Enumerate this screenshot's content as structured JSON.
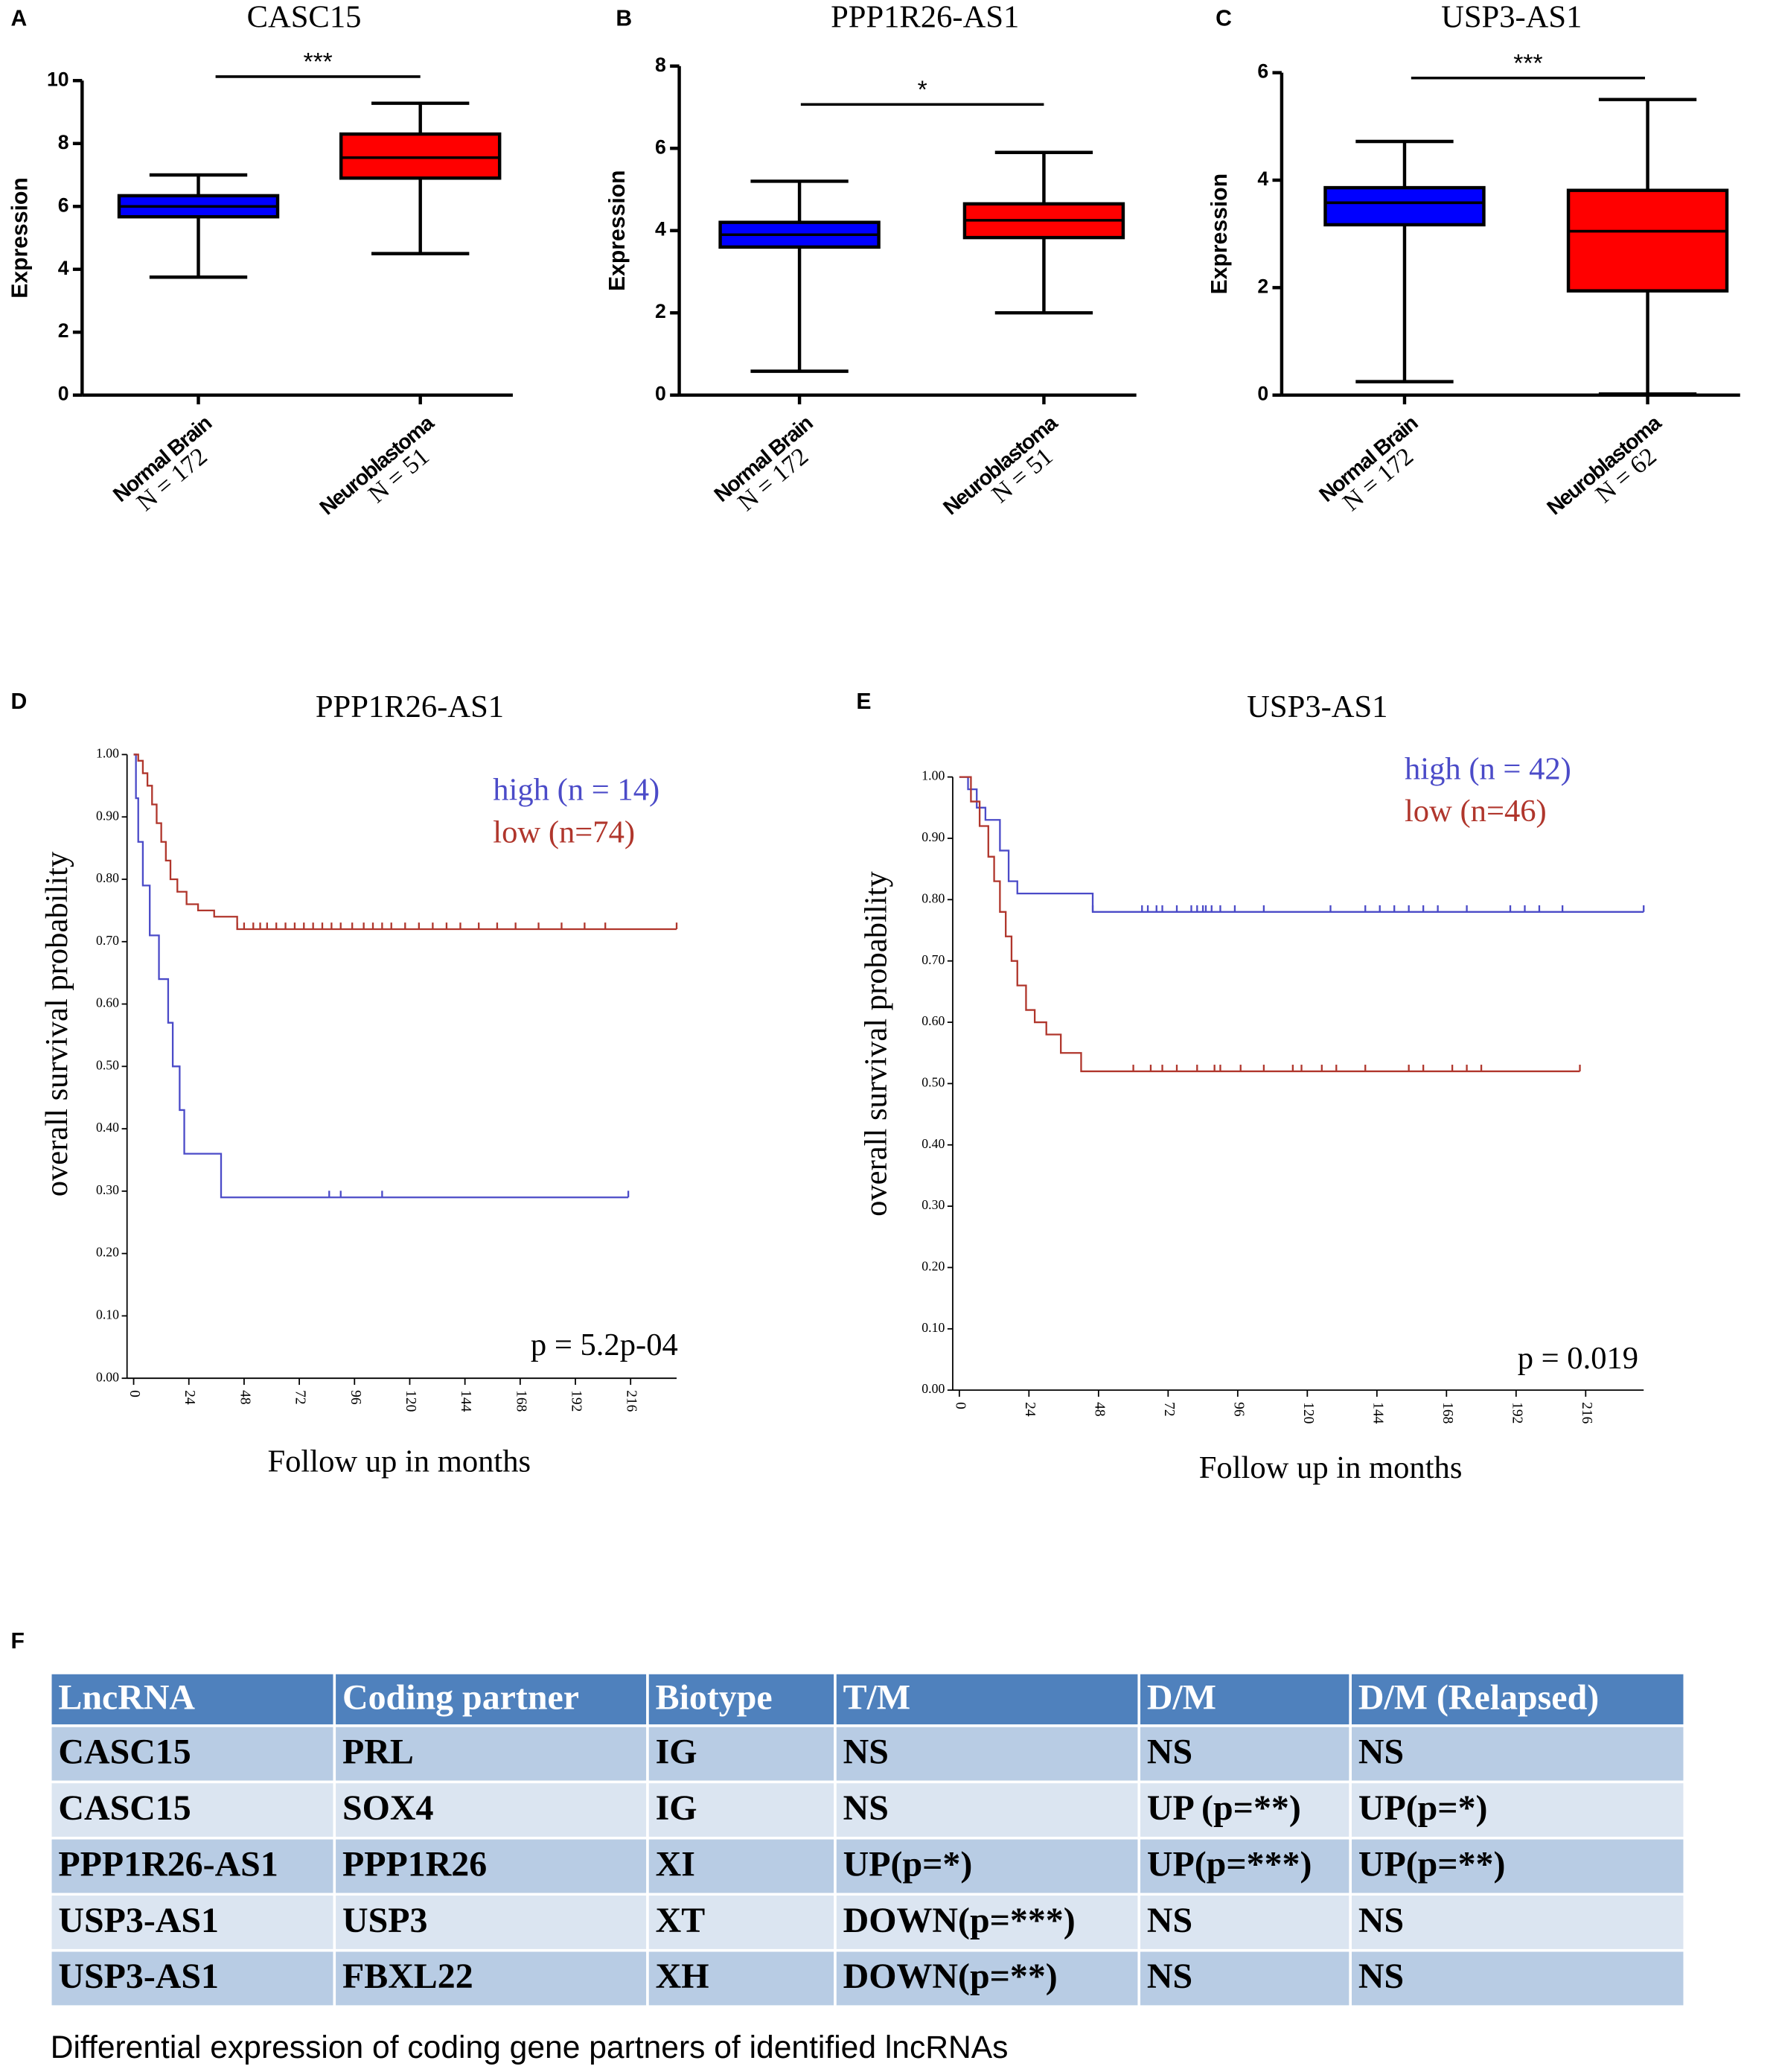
{
  "chart_data": [
    {
      "type": "box",
      "label": "A",
      "title": "CASC15",
      "ylabel": "Expression",
      "ylim": [
        0,
        10
      ],
      "yticks": [
        0,
        2,
        4,
        6,
        8,
        10
      ],
      "categories": [
        "Normal Brain",
        "Neuroblastoma"
      ],
      "sample_sizes": [
        "N = 172",
        "N = 51"
      ],
      "significance": "***",
      "boxes": [
        {
          "color": "#0000ff",
          "min": 3.75,
          "q1": 5.67,
          "median": 6.0,
          "q3": 6.34,
          "max": 7.0
        },
        {
          "color": "#ff0000",
          "min": 4.5,
          "q1": 6.9,
          "median": 7.55,
          "q3": 8.3,
          "max": 9.28
        }
      ]
    },
    {
      "type": "box",
      "label": "B",
      "title": "PPP1R26-AS1",
      "ylabel": "Expression",
      "ylim": [
        0,
        8
      ],
      "yticks": [
        0,
        2,
        4,
        6,
        8
      ],
      "categories": [
        "Normal Brain",
        "Neuroblastoma"
      ],
      "sample_sizes": [
        "N = 172",
        "N = 51"
      ],
      "significance": "*",
      "boxes": [
        {
          "color": "#0000ff",
          "min": 0.58,
          "q1": 3.6,
          "median": 3.9,
          "q3": 4.2,
          "max": 5.2
        },
        {
          "color": "#ff0000",
          "min": 2.0,
          "q1": 3.83,
          "median": 4.25,
          "q3": 4.65,
          "max": 5.9
        }
      ]
    },
    {
      "type": "box",
      "label": "C",
      "title": "USP3-AS1",
      "ylabel": "Expression",
      "ylim": [
        0,
        6
      ],
      "yticks": [
        0,
        2,
        4,
        6
      ],
      "categories": [
        "Normal Brain",
        "Neuroblastoma"
      ],
      "sample_sizes": [
        "N = 172",
        "N = 62"
      ],
      "significance": "***",
      "boxes": [
        {
          "color": "#0000ff",
          "min": 0.25,
          "q1": 3.17,
          "median": 3.58,
          "q3": 3.86,
          "max": 4.72
        },
        {
          "color": "#ff0000",
          "min": 0.02,
          "q1": 1.94,
          "median": 3.05,
          "q3": 3.81,
          "max": 5.5
        }
      ]
    },
    {
      "type": "step",
      "label": "D",
      "title": "PPP1R26-AS1",
      "ylabel": "overall survival probability",
      "xlabel": "Follow up in months",
      "annotation": "p = 5.2p-04",
      "xlim": [
        0,
        236
      ],
      "xticks": [
        0,
        24,
        48,
        72,
        96,
        120,
        144,
        168,
        192,
        216
      ],
      "ylim": [
        0,
        1
      ],
      "yticks": [
        {
          "value": 0,
          "label": "0.00"
        },
        {
          "value": 0.1,
          "label": "0.10"
        },
        {
          "value": 0.2,
          "label": "0.20"
        },
        {
          "value": 0.3,
          "label": "0.30"
        },
        {
          "value": 0.4,
          "label": "0.40"
        },
        {
          "value": 0.5,
          "label": "0.50"
        },
        {
          "value": 0.6,
          "label": "0.60"
        },
        {
          "value": 0.7,
          "label": "0.70"
        },
        {
          "value": 0.8,
          "label": "0.80"
        },
        {
          "value": 0.9,
          "label": "0.90"
        },
        {
          "value": 1,
          "label": "1.00"
        }
      ],
      "series": [
        {
          "name": "high (n = 14)",
          "color": "#4b4bc8",
          "x": [
            0,
            1,
            2,
            4,
            7,
            11,
            15,
            17,
            20,
            22,
            38,
            215
          ],
          "values": [
            1.0,
            0.93,
            0.86,
            0.79,
            0.71,
            0.64,
            0.57,
            0.5,
            0.43,
            0.36,
            0.29,
            0.29
          ],
          "censored": [
            85,
            90,
            108,
            215
          ]
        },
        {
          "name": "low (n=74)",
          "color": "#b0362c",
          "x": [
            0,
            2,
            4,
            6,
            8,
            10,
            12,
            14,
            16,
            19,
            23,
            28,
            35,
            45,
            236
          ],
          "values": [
            1.0,
            0.99,
            0.97,
            0.95,
            0.92,
            0.89,
            0.86,
            0.83,
            0.8,
            0.78,
            0.76,
            0.75,
            0.74,
            0.72,
            0.72
          ],
          "censored": [
            45,
            48,
            52,
            55,
            58,
            62,
            66,
            70,
            74,
            78,
            82,
            86,
            90,
            95,
            100,
            104,
            108,
            112,
            118,
            124,
            130,
            136,
            142,
            150,
            158,
            166,
            176,
            186,
            196,
            205,
            236
          ]
        }
      ]
    },
    {
      "type": "step",
      "label": "E",
      "title": "USP3-AS1",
      "ylabel": "overall survival probability",
      "xlabel": "Follow up in months",
      "annotation": "p = 0.019",
      "xlim": [
        0,
        236
      ],
      "xticks": [
        0,
        24,
        48,
        72,
        96,
        120,
        144,
        168,
        192,
        216
      ],
      "ylim": [
        0,
        1
      ],
      "yticks": [
        {
          "value": 0,
          "label": "0.00"
        },
        {
          "value": 0.1,
          "label": "0.10"
        },
        {
          "value": 0.2,
          "label": "0.20"
        },
        {
          "value": 0.3,
          "label": "0.30"
        },
        {
          "value": 0.4,
          "label": "0.40"
        },
        {
          "value": 0.5,
          "label": "0.50"
        },
        {
          "value": 0.6,
          "label": "0.60"
        },
        {
          "value": 0.7,
          "label": "0.70"
        },
        {
          "value": 0.8,
          "label": "0.80"
        },
        {
          "value": 0.9,
          "label": "0.90"
        },
        {
          "value": 1,
          "label": "1.00"
        }
      ],
      "series": [
        {
          "name": "high (n = 42)",
          "color": "#4b4bc8",
          "x": [
            0,
            3,
            6,
            9,
            14,
            17,
            20,
            46,
            236
          ],
          "values": [
            1.0,
            0.98,
            0.95,
            0.93,
            0.88,
            0.83,
            0.81,
            0.78,
            0.78
          ],
          "censored": [
            46,
            63,
            65,
            68,
            70,
            75,
            80,
            82,
            84,
            85,
            87,
            90,
            95,
            105,
            128,
            140,
            145,
            150,
            155,
            160,
            165,
            175,
            190,
            195,
            200,
            208,
            236
          ]
        },
        {
          "name": "low (n=46)",
          "color": "#b0362c",
          "x": [
            0,
            4,
            7,
            10,
            12,
            14,
            16,
            18,
            20,
            23,
            26,
            30,
            35,
            42,
            214
          ],
          "values": [
            1.0,
            0.96,
            0.92,
            0.87,
            0.83,
            0.78,
            0.74,
            0.7,
            0.66,
            0.62,
            0.6,
            0.58,
            0.55,
            0.52,
            0.52
          ],
          "censored": [
            60,
            66,
            70,
            75,
            82,
            88,
            90,
            97,
            105,
            115,
            118,
            125,
            130,
            140,
            155,
            160,
            170,
            175,
            180,
            214
          ]
        }
      ]
    }
  ],
  "table": {
    "label": "F",
    "header": [
      "LncRNA",
      "Coding partner",
      "Biotype",
      "T/M",
      "D/M",
      "D/M (Relapsed)"
    ],
    "rows": [
      [
        "CASC15",
        "PRL",
        "IG",
        "NS",
        "NS",
        "NS"
      ],
      [
        "CASC15",
        "SOX4",
        "IG",
        "NS",
        "UP (p=**)",
        "UP(p=*)"
      ],
      [
        "PPP1R26-AS1",
        "PPP1R26",
        "XI",
        "UP(p=*)",
        "UP(p=***)",
        "UP(p=**)"
      ],
      [
        "USP3-AS1",
        "USP3",
        "XT",
        "DOWN(p=***)",
        "NS",
        "NS"
      ],
      [
        "USP3-AS1",
        "FBXL22",
        "XH",
        "DOWN(p=**)",
        "NS",
        "NS"
      ]
    ],
    "caption": "Differential expression of coding gene partners of identified lncRNAs"
  }
}
